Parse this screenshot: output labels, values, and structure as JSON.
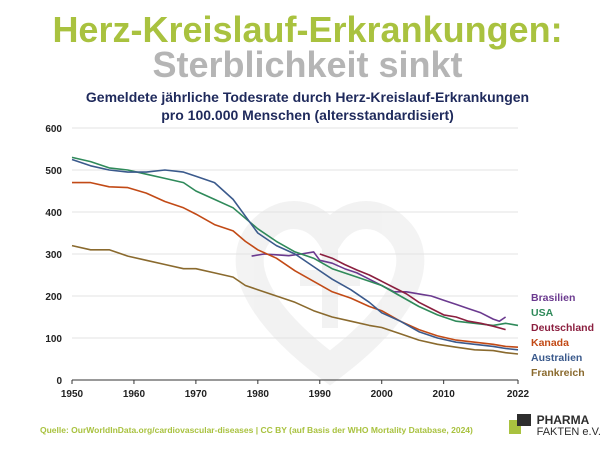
{
  "header": {
    "title_line1": "Herz-Kreislauf-Erkrankungen:",
    "title_line2": "Sterblichkeit sinkt"
  },
  "footer": {
    "source": "Quelle: OurWorldInData.org/cardiovascular-diseases | CC BY (auf Basis der WHO Mortality Database, 2024)",
    "logo_line1": "PHARMA",
    "logo_line2": "FAKTEN e.V."
  },
  "colors": {
    "brand_green": "#a9c23f",
    "brand_grey": "#b5b5b5",
    "navy": "#1f2a5c"
  },
  "chart_data": {
    "type": "line",
    "title": "Gemeldete jährliche Todesrate durch Herz-Kreislauf-Erkrankungen",
    "subtitle": "pro 100.000 Menschen (altersstandardisiert)",
    "xlim": [
      1950,
      2022
    ],
    "ylim": [
      0,
      600
    ],
    "x_ticks": [
      "1950",
      "1960",
      "1970",
      "1980",
      "1990",
      "2000",
      "2010",
      "2022"
    ],
    "y_ticks": [
      "0",
      "100",
      "200",
      "300",
      "400",
      "500",
      "600"
    ],
    "grid": true,
    "legend": "right-inline",
    "series": [
      {
        "name": "Brasilien",
        "color": "#6b3a8f",
        "x": [
          1979,
          1981,
          1983,
          1985,
          1987,
          1989,
          1990,
          1992,
          1994,
          1996,
          1998,
          2000,
          2002,
          2004,
          2006,
          2008,
          2010,
          2012,
          2014,
          2016,
          2018,
          2019,
          2020
        ],
        "y": [
          295,
          300,
          298,
          296,
          300,
          305,
          285,
          278,
          265,
          255,
          240,
          225,
          210,
          210,
          205,
          200,
          190,
          180,
          170,
          160,
          145,
          140,
          150
        ]
      },
      {
        "name": "USA",
        "color": "#2f8a5a",
        "x": [
          1950,
          1953,
          1956,
          1959,
          1962,
          1965,
          1968,
          1970,
          1973,
          1976,
          1978,
          1980,
          1983,
          1986,
          1989,
          1992,
          1995,
          1998,
          2000,
          2003,
          2006,
          2009,
          2012,
          2015,
          2018,
          2020,
          2022
        ],
        "y": [
          530,
          520,
          505,
          500,
          490,
          480,
          470,
          450,
          430,
          410,
          385,
          360,
          330,
          305,
          290,
          265,
          250,
          235,
          225,
          200,
          175,
          155,
          140,
          135,
          130,
          135,
          130
        ]
      },
      {
        "name": "Deutschland",
        "color": "#8b1f3f",
        "x": [
          1990,
          1992,
          1994,
          1996,
          1998,
          2000,
          2002,
          2004,
          2006,
          2008,
          2010,
          2012,
          2014,
          2016,
          2018,
          2020
        ],
        "y": [
          300,
          290,
          275,
          262,
          250,
          235,
          220,
          205,
          185,
          170,
          155,
          150,
          140,
          135,
          128,
          120
        ]
      },
      {
        "name": "Kanada",
        "color": "#c24a16",
        "x": [
          1950,
          1953,
          1956,
          1959,
          1962,
          1965,
          1968,
          1970,
          1973,
          1976,
          1978,
          1980,
          1983,
          1986,
          1989,
          1992,
          1995,
          1998,
          2000,
          2003,
          2006,
          2009,
          2012,
          2015,
          2018,
          2020,
          2022
        ],
        "y": [
          470,
          470,
          460,
          458,
          445,
          425,
          410,
          395,
          370,
          355,
          330,
          310,
          290,
          260,
          235,
          210,
          195,
          175,
          165,
          140,
          120,
          105,
          95,
          90,
          85,
          80,
          78
        ]
      },
      {
        "name": "Australien",
        "color": "#3b5a8c",
        "x": [
          1950,
          1953,
          1956,
          1959,
          1962,
          1965,
          1968,
          1970,
          1973,
          1976,
          1978,
          1980,
          1983,
          1986,
          1989,
          1992,
          1995,
          1998,
          2000,
          2003,
          2006,
          2009,
          2012,
          2015,
          2018,
          2020,
          2022
        ],
        "y": [
          525,
          510,
          500,
          495,
          495,
          500,
          495,
          485,
          470,
          430,
          390,
          350,
          320,
          300,
          270,
          240,
          215,
          185,
          160,
          140,
          115,
          100,
          90,
          85,
          80,
          75,
          72
        ]
      },
      {
        "name": "Frankreich",
        "color": "#8a6a2e",
        "x": [
          1950,
          1953,
          1956,
          1959,
          1962,
          1965,
          1968,
          1970,
          1973,
          1976,
          1978,
          1980,
          1983,
          1986,
          1989,
          1992,
          1995,
          1998,
          2000,
          2003,
          2006,
          2009,
          2012,
          2015,
          2018,
          2020,
          2022
        ],
        "y": [
          320,
          310,
          310,
          295,
          285,
          275,
          265,
          265,
          255,
          245,
          225,
          215,
          200,
          185,
          165,
          150,
          140,
          130,
          125,
          110,
          95,
          85,
          78,
          72,
          70,
          65,
          62
        ]
      }
    ]
  }
}
